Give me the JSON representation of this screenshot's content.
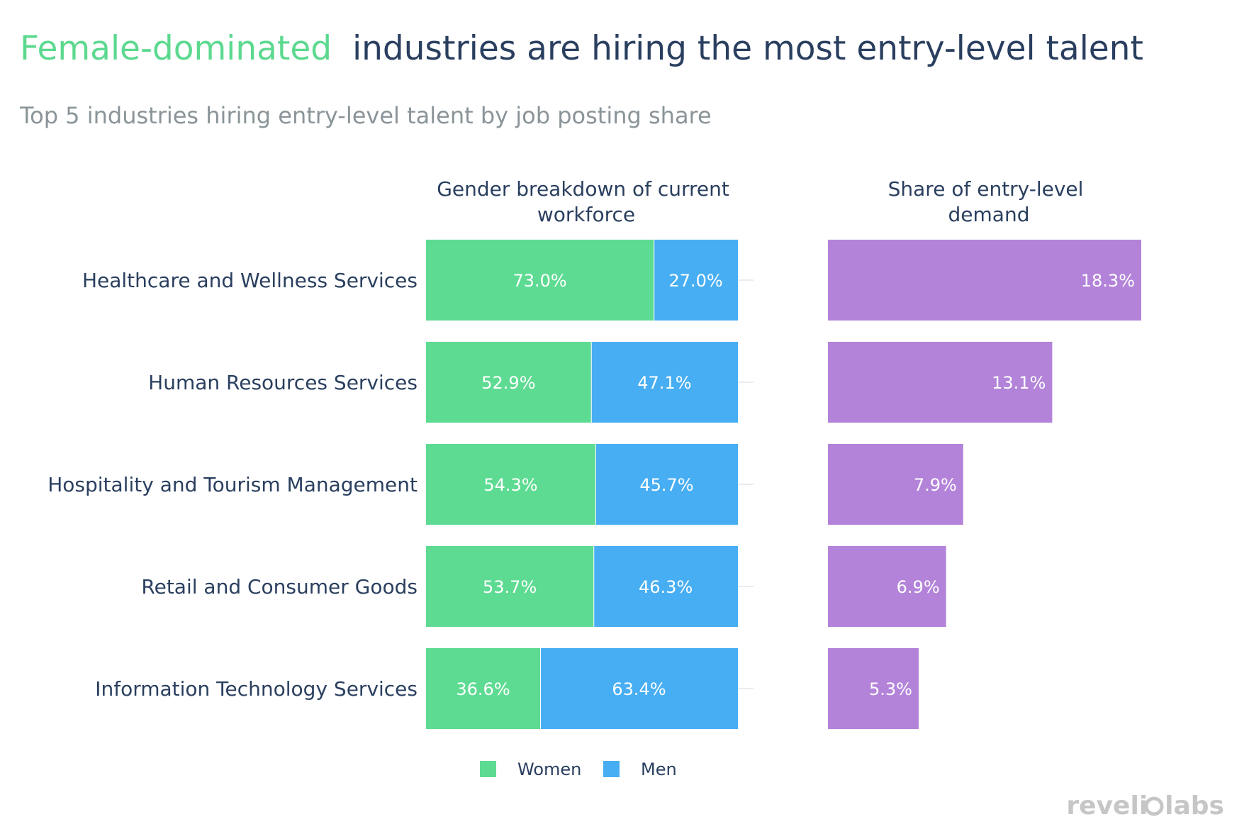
{
  "title_highlight": "Female-dominated",
  "title_rest": "industries are hiring the most entry-level talent",
  "subtitle": "Top 5 industries hiring entry-level talent by job posting share",
  "logo_text_a": "reveli",
  "logo_text_b": "labs",
  "colors": {
    "highlight": "#5cd98f",
    "title": "#2a3f5f",
    "women": "#5edb92",
    "men": "#48aef3",
    "demand": "#b383d9"
  },
  "chart_data": [
    {
      "type": "bar",
      "orientation": "horizontal",
      "stacked": true,
      "title": "Gender breakdown of current workforce",
      "title_lines": [
        "Gender breakdown of current",
        "workforce"
      ],
      "categories": [
        "Healthcare and Wellness Services",
        "Human Resources Services",
        "Hospitality and Tourism Management",
        "Retail and Consumer Goods",
        "Information Technology Services"
      ],
      "series": [
        {
          "name": "Women",
          "values": [
            73.0,
            52.9,
            54.3,
            53.7,
            36.6
          ],
          "labels": [
            "73.0%",
            "52.9%",
            "54.3%",
            "53.7%",
            "36.6%"
          ]
        },
        {
          "name": "Men",
          "values": [
            27.0,
            47.1,
            45.7,
            46.3,
            63.4
          ],
          "labels": [
            "27.0%",
            "47.1%",
            "45.7%",
            "46.3%",
            "63.4%"
          ]
        }
      ],
      "xlim": [
        0,
        100
      ],
      "legend": "bottom-center"
    },
    {
      "type": "bar",
      "orientation": "horizontal",
      "title": "Share of entry-level demand",
      "title_lines": [
        "Share of entry-level",
        "demand"
      ],
      "categories": [
        "Healthcare and Wellness Services",
        "Human Resources Services",
        "Hospitality and Tourism Management",
        "Retail and Consumer Goods",
        "Information Technology Services"
      ],
      "values": [
        18.3,
        13.1,
        7.9,
        6.9,
        5.3
      ],
      "labels": [
        "18.3%",
        "13.1%",
        "7.9%",
        "6.9%",
        "5.3%"
      ],
      "xlim": [
        0,
        18.3
      ]
    }
  ]
}
